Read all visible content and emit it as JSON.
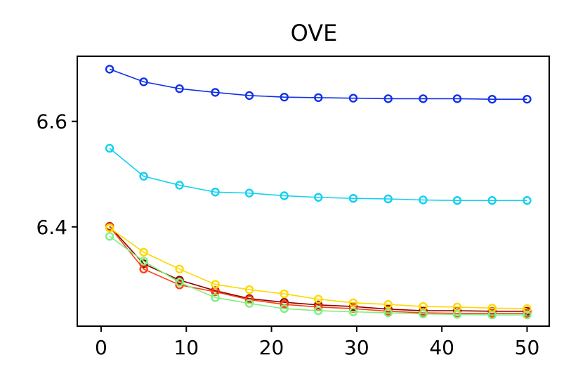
{
  "chart_data": {
    "type": "line",
    "title": "OVE",
    "xlabel": "",
    "ylabel": "",
    "xlim": [
      -2.8,
      52.6
    ],
    "ylim": [
      6.2118,
      6.7235
    ],
    "x_ticks": [
      0,
      10,
      20,
      30,
      40,
      50
    ],
    "y_ticks": [
      6.4,
      6.6
    ],
    "x_tick_labels": [
      "0",
      "10",
      "20",
      "30",
      "40",
      "50"
    ],
    "y_tick_labels": [
      "6.4",
      "6.6"
    ],
    "grid": false,
    "marker": "open-circle",
    "x": [
      1,
      5,
      9.2,
      13.4,
      17.4,
      21.5,
      25.5,
      29.6,
      33.7,
      37.8,
      41.8,
      45.9,
      50
    ],
    "series": [
      {
        "name": "blue",
        "color": "#1030e8",
        "values": [
          6.699,
          6.675,
          6.662,
          6.655,
          6.649,
          6.646,
          6.645,
          6.644,
          6.643,
          6.643,
          6.643,
          6.642,
          6.642
        ]
      },
      {
        "name": "cyan",
        "color": "#10d0f0",
        "values": [
          6.549,
          6.496,
          6.479,
          6.466,
          6.464,
          6.459,
          6.456,
          6.454,
          6.453,
          6.451,
          6.45,
          6.45,
          6.45
        ]
      },
      {
        "name": "dark-red",
        "color": "#8b0000",
        "values": [
          6.401,
          6.33,
          6.299,
          6.279,
          6.264,
          6.257,
          6.252,
          6.249,
          6.244,
          6.241,
          6.241,
          6.24,
          6.24
        ]
      },
      {
        "name": "orange-red",
        "color": "#ff4010",
        "values": [
          6.4,
          6.32,
          6.29,
          6.277,
          6.262,
          6.253,
          6.248,
          6.245,
          6.24,
          6.237,
          6.236,
          6.236,
          6.236
        ]
      },
      {
        "name": "yellow",
        "color": "#ffd800",
        "values": [
          6.398,
          6.352,
          6.32,
          6.291,
          6.281,
          6.273,
          6.263,
          6.256,
          6.253,
          6.249,
          6.248,
          6.246,
          6.245
        ]
      },
      {
        "name": "light-green",
        "color": "#80f080",
        "values": [
          6.382,
          6.335,
          6.295,
          6.266,
          6.255,
          6.245,
          6.241,
          6.239,
          6.237,
          6.235,
          6.234,
          6.233,
          6.233
        ]
      }
    ]
  }
}
